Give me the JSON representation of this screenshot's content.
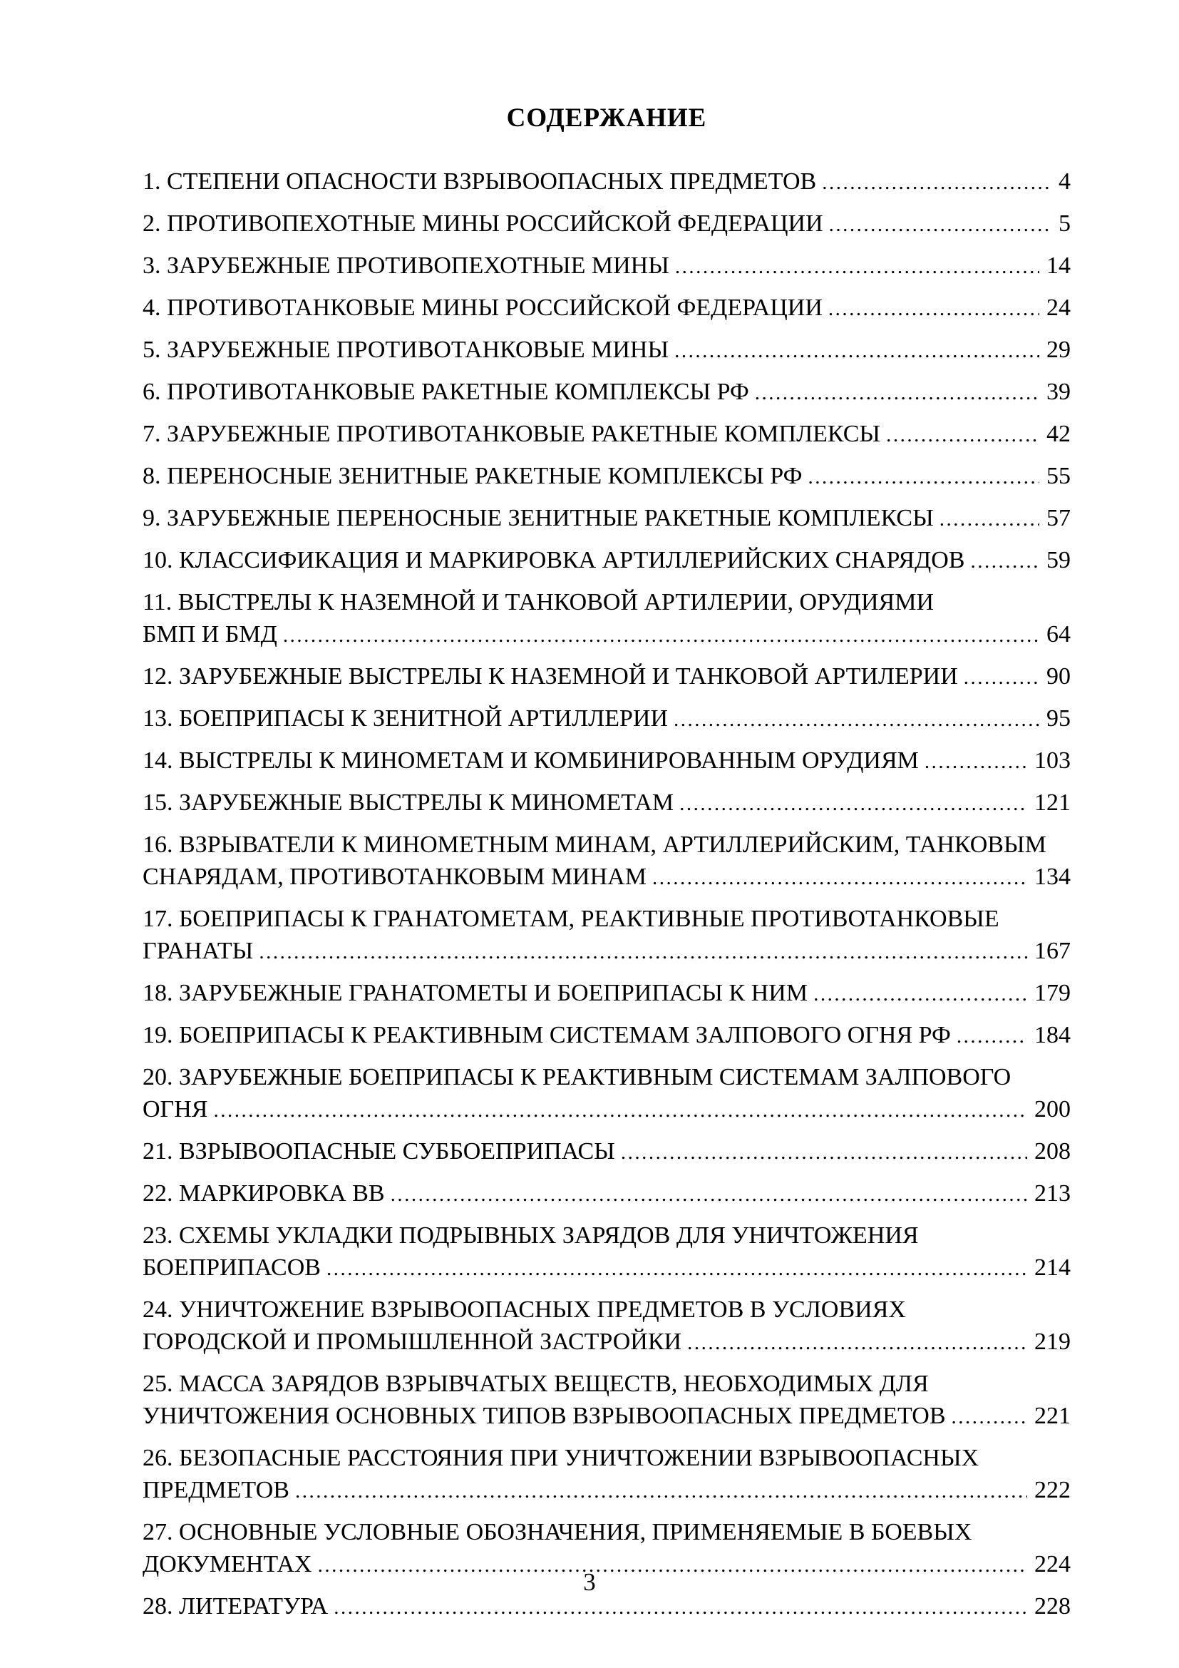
{
  "page": {
    "title": "СОДЕРЖАНИЕ",
    "footer_page_number": "3"
  },
  "toc": {
    "entries": [
      {
        "lines": [
          "1. СТЕПЕНИ ОПАСНОСТИ ВЗРЫВООПАСНЫХ ПРЕДМЕТОВ"
        ],
        "page": "4"
      },
      {
        "lines": [
          "2. ПРОТИВОПЕХОТНЫЕ МИНЫ РОССИЙСКОЙ ФЕДЕРАЦИИ"
        ],
        "page": "5"
      },
      {
        "lines": [
          "3. ЗАРУБЕЖНЫЕ ПРОТИВОПЕХОТНЫЕ МИНЫ"
        ],
        "page": "14"
      },
      {
        "lines": [
          "4. ПРОТИВОТАНКОВЫЕ МИНЫ РОССИЙСКОЙ ФЕДЕРАЦИИ"
        ],
        "page": "24"
      },
      {
        "lines": [
          "5. ЗАРУБЕЖНЫЕ ПРОТИВОТАНКОВЫЕ МИНЫ"
        ],
        "page": "29"
      },
      {
        "lines": [
          "6. ПРОТИВОТАНКОВЫЕ РАКЕТНЫЕ КОМПЛЕКСЫ РФ"
        ],
        "page": "39"
      },
      {
        "lines": [
          "7. ЗАРУБЕЖНЫЕ ПРОТИВОТАНКОВЫЕ РАКЕТНЫЕ КОМПЛЕКСЫ"
        ],
        "page": "42"
      },
      {
        "lines": [
          "8. ПЕРЕНОСНЫЕ ЗЕНИТНЫЕ РАКЕТНЫЕ КОМПЛЕКСЫ РФ"
        ],
        "page": "55"
      },
      {
        "lines": [
          "9. ЗАРУБЕЖНЫЕ ПЕРЕНОСНЫЕ ЗЕНИТНЫЕ РАКЕТНЫЕ КОМПЛЕКСЫ"
        ],
        "page": "57"
      },
      {
        "lines": [
          "10. КЛАССИФИКАЦИЯ И МАРКИРОВКА АРТИЛЛЕРИЙСКИХ СНАРЯДОВ"
        ],
        "page": "59"
      },
      {
        "lines": [
          "11. ВЫСТРЕЛЫ К НАЗЕМНОЙ И ТАНКОВОЙ АРТИЛЕРИИ, ОРУДИЯМИ",
          "БМП И БМД"
        ],
        "page": "64"
      },
      {
        "lines": [
          "12. ЗАРУБЕЖНЫЕ ВЫСТРЕЛЫ К НАЗЕМНОЙ И ТАНКОВОЙ АРТИЛЕРИИ"
        ],
        "page": "90"
      },
      {
        "lines": [
          "13. БОЕПРИПАСЫ К ЗЕНИТНОЙ АРТИЛЛЕРИИ"
        ],
        "page": "95"
      },
      {
        "lines": [
          "14. ВЫСТРЕЛЫ К МИНОМЕТАМ И КОМБИНИРОВАННЫМ ОРУДИЯМ"
        ],
        "page": "103"
      },
      {
        "lines": [
          "15. ЗАРУБЕЖНЫЕ ВЫСТРЕЛЫ К МИНОМЕТАМ"
        ],
        "page": "121"
      },
      {
        "lines": [
          "16. ВЗРЫВАТЕЛИ К МИНОМЕТНЫМ МИНАМ, АРТИЛЛЕРИЙСКИМ, ТАНКОВЫМ",
          "СНАРЯДАМ, ПРОТИВОТАНКОВЫМ МИНАМ"
        ],
        "page": "134"
      },
      {
        "lines": [
          "17. БОЕПРИПАСЫ К ГРАНАТОМЕТАМ, РЕАКТИВНЫЕ ПРОТИВОТАНКОВЫЕ",
          "ГРАНАТЫ"
        ],
        "page": "167"
      },
      {
        "lines": [
          "18. ЗАРУБЕЖНЫЕ ГРАНАТОМЕТЫ И БОЕПРИПАСЫ К НИМ"
        ],
        "page": "179"
      },
      {
        "lines": [
          "19. БОЕПРИПАСЫ К РЕАКТИВНЫМ СИСТЕМАМ ЗАЛПОВОГО ОГНЯ РФ"
        ],
        "page": "184"
      },
      {
        "lines": [
          "20. ЗАРУБЕЖНЫЕ БОЕПРИПАСЫ К РЕАКТИВНЫМ СИСТЕМАМ ЗАЛПОВОГО",
          "ОГНЯ"
        ],
        "page": "200"
      },
      {
        "lines": [
          "21. ВЗРЫВООПАСНЫЕ СУББОЕПРИПАСЫ"
        ],
        "page": "208"
      },
      {
        "lines": [
          "22. МАРКИРОВКА ВВ"
        ],
        "page": "213"
      },
      {
        "lines": [
          "23. СХЕМЫ УКЛАДКИ ПОДРЫВНЫХ ЗАРЯДОВ ДЛЯ УНИЧТОЖЕНИЯ",
          "БОЕПРИПАСОВ"
        ],
        "page": "214"
      },
      {
        "lines": [
          "24. УНИЧТОЖЕНИЕ ВЗРЫВООПАСНЫХ ПРЕДМЕТОВ В УСЛОВИЯХ",
          "ГОРОДСКОЙ И ПРОМЫШЛЕННОЙ ЗАСТРОЙКИ"
        ],
        "page": "219"
      },
      {
        "lines": [
          "25. МАССА ЗАРЯДОВ ВЗРЫВЧАТЫХ ВЕЩЕСТВ, НЕОБХОДИМЫХ ДЛЯ",
          "УНИЧТОЖЕНИЯ ОСНОВНЫХ ТИПОВ ВЗРЫВООПАСНЫХ ПРЕДМЕТОВ"
        ],
        "page": "221"
      },
      {
        "lines": [
          "26. БЕЗОПАСНЫЕ РАССТОЯНИЯ ПРИ УНИЧТОЖЕНИИ ВЗРЫВООПАСНЫХ",
          "ПРЕДМЕТОВ"
        ],
        "page": "222"
      },
      {
        "lines": [
          "27. ОСНОВНЫЕ УСЛОВНЫЕ ОБОЗНАЧЕНИЯ, ПРИМЕНЯЕМЫЕ В БОЕВЫХ",
          "ДОКУМЕНТАХ"
        ],
        "page": "224"
      },
      {
        "lines": [
          "28. ЛИТЕРАТУРА"
        ],
        "page": "228"
      }
    ]
  }
}
